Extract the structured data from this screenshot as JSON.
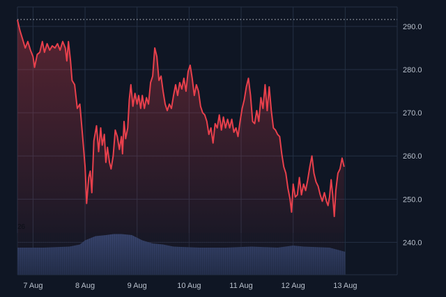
{
  "chart_data": {
    "type": "line",
    "title": "",
    "xlabel": "",
    "ylabel": "",
    "x_ticks": [
      "7 Aug",
      "8 Aug",
      "9 Aug",
      "10 Aug",
      "11 Aug",
      "12 Aug",
      "13 Aug"
    ],
    "y_ticks": [
      "290.0",
      "280.0",
      "270.0",
      "260.0",
      "250.0",
      "240.0"
    ],
    "ylim": [
      232.5,
      294.5
    ],
    "xlim": [
      0,
      7.3
    ],
    "reference_line": 291.6,
    "volume_label": "26",
    "colors": {
      "line": "#e8404c",
      "area": "#e8404c",
      "volume": "#2e3a5c",
      "grid": "#243044",
      "reference": "#c8ccd4"
    },
    "series": [
      {
        "values": [
          [
            0.0,
            291.5
          ],
          [
            0.05,
            289.0
          ],
          [
            0.1,
            287.0
          ],
          [
            0.15,
            285.0
          ],
          [
            0.2,
            286.5
          ],
          [
            0.25,
            284.5
          ],
          [
            0.3,
            283.0
          ],
          [
            0.33,
            280.5
          ],
          [
            0.38,
            283.5
          ],
          [
            0.43,
            284.0
          ],
          [
            0.48,
            286.5
          ],
          [
            0.52,
            284.0
          ],
          [
            0.57,
            286.0
          ],
          [
            0.62,
            284.5
          ],
          [
            0.67,
            285.5
          ],
          [
            0.72,
            285.0
          ],
          [
            0.77,
            286.0
          ],
          [
            0.82,
            284.5
          ],
          [
            0.87,
            286.5
          ],
          [
            0.92,
            285.0
          ],
          [
            0.95,
            282.0
          ],
          [
            0.98,
            286.5
          ],
          [
            1.02,
            282.0
          ],
          [
            1.05,
            277.5
          ],
          [
            1.1,
            276.5
          ],
          [
            1.15,
            271.0
          ],
          [
            1.2,
            272.0
          ],
          [
            1.25,
            265.0
          ],
          [
            1.3,
            257.5
          ],
          [
            1.33,
            249.0
          ],
          [
            1.37,
            255.0
          ],
          [
            1.4,
            256.5
          ],
          [
            1.43,
            251.5
          ],
          [
            1.47,
            263.5
          ],
          [
            1.52,
            267.0
          ],
          [
            1.56,
            261.0
          ],
          [
            1.6,
            266.5
          ],
          [
            1.63,
            262.5
          ],
          [
            1.67,
            265.0
          ],
          [
            1.7,
            258.5
          ],
          [
            1.73,
            262.0
          ],
          [
            1.77,
            258.5
          ],
          [
            1.8,
            257.0
          ],
          [
            1.84,
            260.0
          ],
          [
            1.88,
            266.0
          ],
          [
            1.92,
            264.5
          ],
          [
            1.96,
            261.5
          ],
          [
            2.0,
            264.5
          ],
          [
            2.02,
            260.5
          ],
          [
            2.05,
            268.0
          ],
          [
            2.08,
            264.0
          ],
          [
            2.12,
            266.5
          ],
          [
            2.15,
            273.0
          ],
          [
            2.18,
            276.5
          ],
          [
            2.22,
            271.5
          ],
          [
            2.26,
            274.5
          ],
          [
            2.3,
            272.0
          ],
          [
            2.33,
            274.0
          ],
          [
            2.37,
            271.0
          ],
          [
            2.4,
            274.0
          ],
          [
            2.44,
            271.0
          ],
          [
            2.48,
            273.5
          ],
          [
            2.52,
            272.0
          ],
          [
            2.56,
            277.0
          ],
          [
            2.6,
            278.5
          ],
          [
            2.64,
            285.0
          ],
          [
            2.68,
            283.0
          ],
          [
            2.72,
            277.5
          ],
          [
            2.76,
            278.5
          ],
          [
            2.8,
            275.0
          ],
          [
            2.84,
            272.0
          ],
          [
            2.88,
            270.5
          ],
          [
            2.92,
            272.0
          ],
          [
            2.96,
            271.0
          ],
          [
            3.0,
            274.0
          ],
          [
            3.04,
            276.5
          ],
          [
            3.08,
            274.0
          ],
          [
            3.12,
            277.0
          ],
          [
            3.16,
            275.5
          ],
          [
            3.2,
            278.0
          ],
          [
            3.24,
            275.0
          ],
          [
            3.28,
            279.5
          ],
          [
            3.32,
            281.0
          ],
          [
            3.36,
            278.0
          ],
          [
            3.4,
            274.0
          ],
          [
            3.44,
            276.5
          ],
          [
            3.48,
            275.0
          ],
          [
            3.52,
            271.5
          ],
          [
            3.56,
            270.0
          ],
          [
            3.6,
            269.5
          ],
          [
            3.64,
            268.0
          ],
          [
            3.68,
            265.0
          ],
          [
            3.72,
            266.5
          ],
          [
            3.76,
            263.0
          ],
          [
            3.8,
            267.5
          ],
          [
            3.84,
            266.5
          ],
          [
            3.88,
            269.5
          ],
          [
            3.92,
            266.0
          ],
          [
            3.96,
            269.0
          ],
          [
            4.0,
            266.5
          ],
          [
            4.04,
            268.5
          ],
          [
            4.08,
            266.5
          ],
          [
            4.12,
            268.5
          ],
          [
            4.16,
            265.5
          ],
          [
            4.2,
            266.5
          ],
          [
            4.24,
            264.5
          ],
          [
            4.28,
            268.0
          ],
          [
            4.32,
            271.0
          ],
          [
            4.36,
            273.0
          ],
          [
            4.4,
            276.0
          ],
          [
            4.44,
            278.0
          ],
          [
            4.48,
            274.0
          ],
          [
            4.52,
            268.0
          ],
          [
            4.56,
            267.5
          ],
          [
            4.6,
            270.5
          ],
          [
            4.64,
            268.0
          ],
          [
            4.68,
            273.5
          ],
          [
            4.72,
            271.0
          ],
          [
            4.76,
            276.5
          ],
          [
            4.8,
            270.5
          ],
          [
            4.84,
            276.0
          ],
          [
            4.88,
            270.5
          ],
          [
            4.92,
            266.5
          ],
          [
            4.96,
            266.0
          ],
          [
            5.0,
            265.0
          ],
          [
            5.04,
            264.5
          ],
          [
            5.08,
            260.5
          ],
          [
            5.12,
            257.5
          ],
          [
            5.16,
            256.0
          ],
          [
            5.2,
            252.5
          ],
          [
            5.24,
            250.0
          ],
          [
            5.27,
            247.0
          ],
          [
            5.3,
            253.5
          ],
          [
            5.34,
            250.5
          ],
          [
            5.38,
            251.0
          ],
          [
            5.42,
            255.0
          ],
          [
            5.46,
            251.0
          ],
          [
            5.5,
            253.5
          ],
          [
            5.54,
            252.0
          ],
          [
            5.58,
            254.5
          ],
          [
            5.62,
            257.5
          ],
          [
            5.66,
            260.0
          ],
          [
            5.7,
            256.0
          ],
          [
            5.74,
            254.0
          ],
          [
            5.78,
            253.0
          ],
          [
            5.82,
            251.0
          ],
          [
            5.86,
            249.5
          ],
          [
            5.9,
            251.5
          ],
          [
            5.94,
            249.5
          ],
          [
            5.97,
            248.5
          ],
          [
            6.0,
            250.5
          ],
          [
            6.03,
            254.5
          ],
          [
            6.06,
            251.0
          ],
          [
            6.09,
            246.0
          ],
          [
            6.12,
            252.0
          ],
          [
            6.16,
            256.0
          ],
          [
            6.2,
            257.0
          ],
          [
            6.24,
            259.5
          ],
          [
            6.28,
            257.5
          ]
        ]
      }
    ],
    "volume": {
      "x": [
        0.0,
        0.5,
        1.0,
        1.2,
        1.3,
        1.5,
        1.7,
        1.85,
        2.0,
        2.2,
        2.4,
        2.6,
        2.8,
        3.0,
        3.5,
        4.0,
        4.5,
        5.0,
        5.3,
        5.5,
        6.0,
        6.3
      ],
      "values": [
        26,
        26,
        27,
        29,
        33,
        37,
        38,
        39,
        39,
        38,
        33,
        30,
        29,
        27,
        26,
        26,
        27,
        26,
        28,
        27,
        26,
        22
      ]
    }
  }
}
